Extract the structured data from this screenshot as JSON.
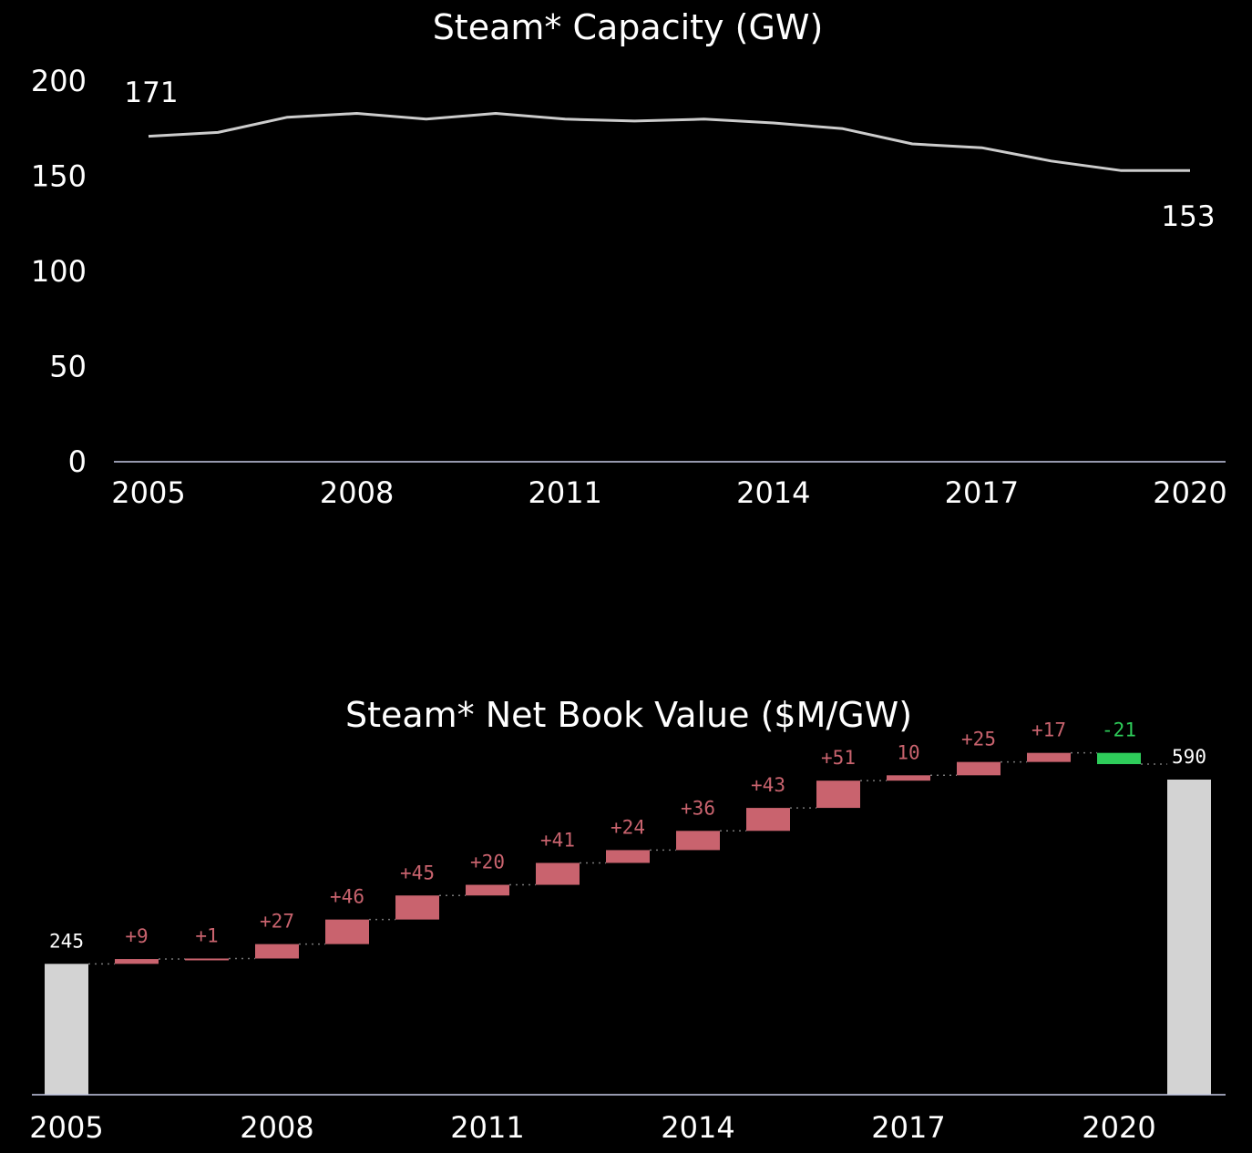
{
  "chart_data": [
    {
      "type": "line",
      "title": "Steam* Capacity (GW)",
      "x": [
        2005,
        2006,
        2007,
        2008,
        2009,
        2010,
        2011,
        2012,
        2013,
        2014,
        2015,
        2016,
        2017,
        2018,
        2019,
        2020
      ],
      "values": [
        171,
        173,
        181,
        183,
        180,
        183,
        180,
        179,
        180,
        178,
        175,
        167,
        165,
        158,
        153,
        153
      ],
      "ylim": [
        0,
        200
      ],
      "yticks": [
        "0",
        "50",
        "100",
        "150",
        "200"
      ],
      "xticks": [
        "2005",
        "2008",
        "2011",
        "2014",
        "2017",
        "2020"
      ],
      "start_label": "171",
      "end_label": "153",
      "colors": {
        "line": "#cccccc",
        "axis": "#c8cce8",
        "text": "#ffffff"
      }
    },
    {
      "type": "bar",
      "subtype": "waterfall",
      "title": "Steam* Net Book Value ($M/GW)",
      "start": {
        "label": "245",
        "value": 245
      },
      "end": {
        "label": "590",
        "value": 590
      },
      "deltas": [
        9,
        1,
        27,
        46,
        45,
        20,
        41,
        24,
        36,
        43,
        51,
        10,
        25,
        17,
        -21
      ],
      "delta_labels": [
        "+9",
        "+1",
        "+27",
        "+46",
        "+45",
        "+20",
        "+41",
        "+24",
        "+36",
        "+43",
        "+51",
        "10",
        "+25",
        "+17",
        "-21"
      ],
      "xticks": [
        "2005",
        "2008",
        "2011",
        "2014",
        "2017",
        "2020"
      ],
      "colors": {
        "increase": "#c9636e",
        "decrease": "#2ecc5a",
        "total": "#d3d3d3",
        "total_label": "#ffffff",
        "connector": "#777777",
        "axis": "#c8cce8"
      }
    }
  ]
}
